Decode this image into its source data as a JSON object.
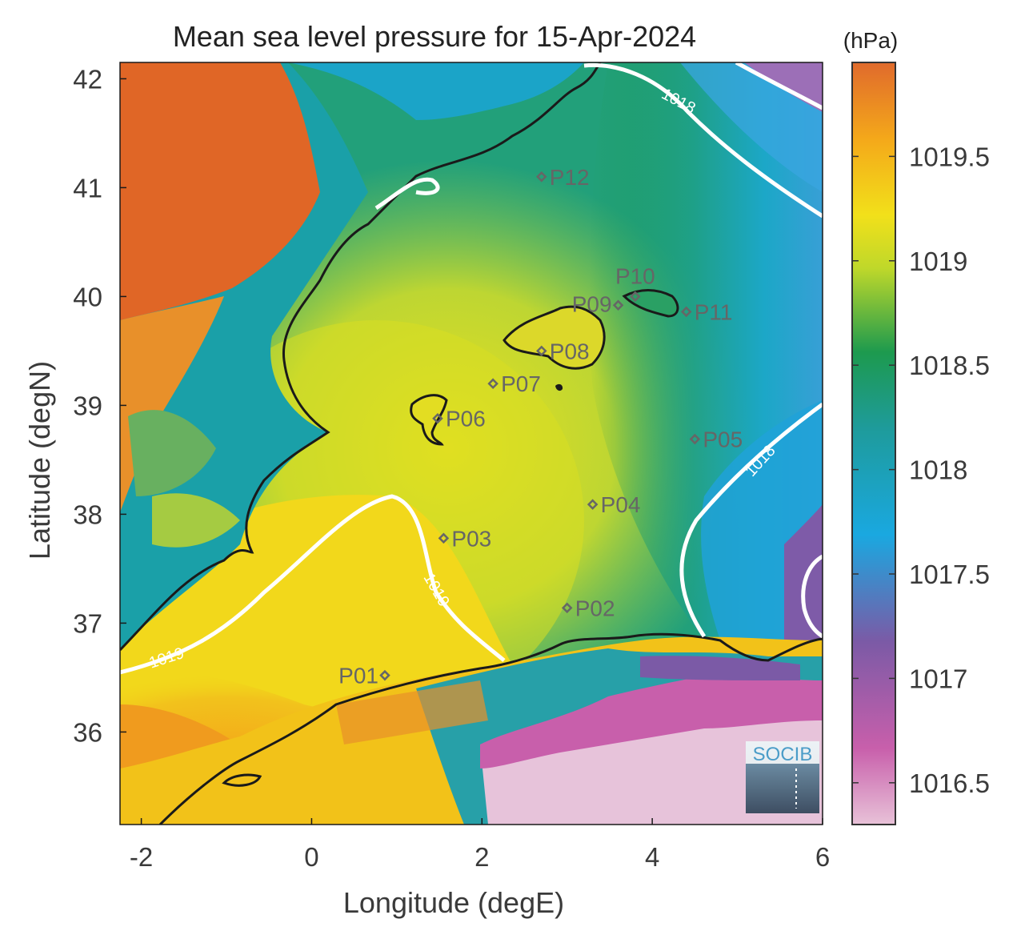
{
  "map": {
    "title": "Mean sea level pressure for 15-Apr-2024",
    "xlabel": "Longitude (degE)",
    "ylabel": "Latitude (degN)",
    "x_ticks": [
      "-2",
      "0",
      "2",
      "4",
      "6"
    ],
    "y_ticks": [
      "42",
      "41",
      "40",
      "39",
      "38",
      "37",
      "36"
    ],
    "lon_range": [
      -2.25,
      6.0
    ],
    "lat_range": [
      35.15,
      42.15
    ],
    "colorbar": {
      "unit": "(hPa)",
      "range": [
        1016.3,
        1019.95
      ],
      "ticks": [
        "1019.5",
        "1019",
        "1018.5",
        "1018",
        "1017.5",
        "1017",
        "1016.5"
      ],
      "colors": [
        "#e8c2d8",
        "#c85fab",
        "#7b5aa6",
        "#1aa8e0",
        "#1e9b9b",
        "#1d9a4e",
        "#bfd82a",
        "#f2e01a",
        "#f4a81a",
        "#e06a2c"
      ]
    },
    "contour_labels": [
      "1018",
      "1018",
      "1019",
      "1019"
    ],
    "stations": [
      {
        "id": "P01",
        "lon": 0.86,
        "lat": 36.52
      },
      {
        "id": "P02",
        "lon": 3.0,
        "lat": 37.14
      },
      {
        "id": "P03",
        "lon": 1.55,
        "lat": 37.78
      },
      {
        "id": "P04",
        "lon": 3.3,
        "lat": 38.09
      },
      {
        "id": "P05",
        "lon": 4.5,
        "lat": 38.69
      },
      {
        "id": "P06",
        "lon": 1.48,
        "lat": 38.88
      },
      {
        "id": "P07",
        "lon": 2.13,
        "lat": 39.2
      },
      {
        "id": "P08",
        "lon": 2.7,
        "lat": 39.5
      },
      {
        "id": "P09",
        "lon": 3.6,
        "lat": 39.92
      },
      {
        "id": "P10",
        "lon": 3.8,
        "lat": 40.0
      },
      {
        "id": "P11",
        "lon": 4.4,
        "lat": 39.86
      },
      {
        "id": "P12",
        "lon": 2.7,
        "lat": 41.1
      }
    ],
    "logo_text": "SOCIB"
  }
}
